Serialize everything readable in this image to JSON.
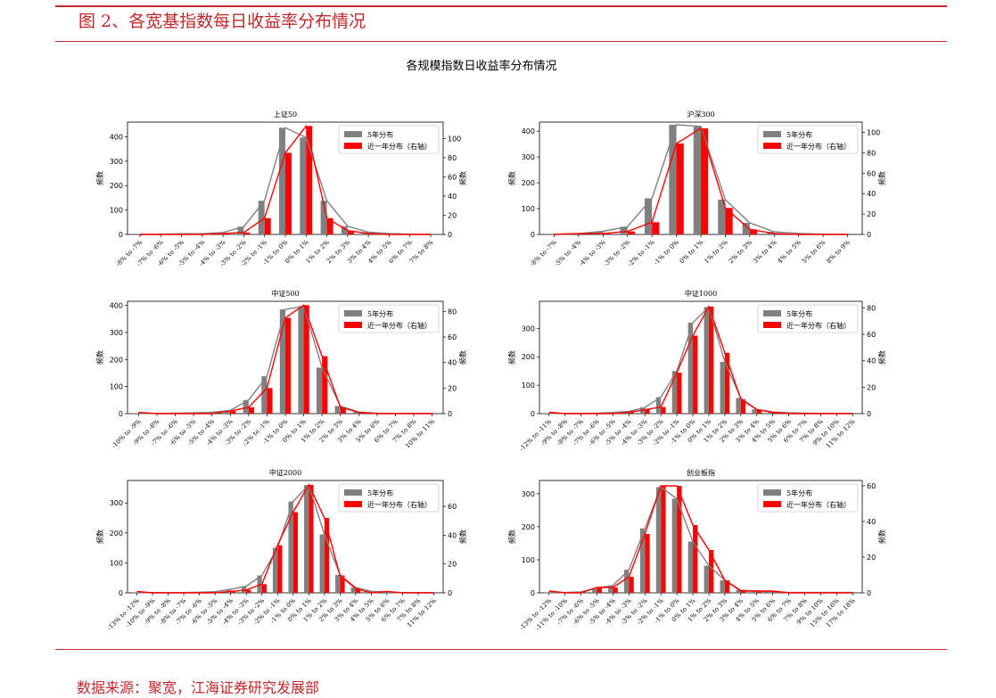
{
  "header": {
    "figure_title": "图 2、各宽基指数每日收益率分布情况"
  },
  "footer": {
    "source": "数据来源：聚宽，江海证券研究发展部"
  },
  "colors": {
    "accent": "#c0282a",
    "series_5y": "#808080",
    "series_1y": "#ff0000"
  },
  "chart_data": {
    "suptitle": "各规模指数日收益率分布情况",
    "type": "bar",
    "subplots": [
      {
        "title": "上证50",
        "categories": [
          "-8% to -7%",
          "-7% to -6%",
          "-6% to -5%",
          "-5% to -4%",
          "-4% to -3%",
          "-3% to -2%",
          "-2% to -1%",
          "-1% to 0%",
          "0% to 1%",
          "1% to 2%",
          "2% to 3%",
          "3% to 4%",
          "4% to 5%",
          "6% to 7%",
          "7% to 8%"
        ],
        "ylabel": "频数",
        "ylabel_right": "频数",
        "ylim": [
          0,
          460
        ],
        "yticks": [
          0,
          100,
          200,
          300,
          400
        ],
        "ylim_right": [
          0,
          117
        ],
        "yticks_right": [
          0,
          20,
          40,
          60,
          80,
          100
        ],
        "legend": "top-right",
        "series": [
          {
            "name": "5年分布",
            "axis": "left",
            "values": [
              1,
              1,
              3,
              3,
              8,
              32,
              138,
              437,
              397,
              138,
              34,
              9,
              4,
              1,
              1
            ]
          },
          {
            "name": "近一年分布（右轴）",
            "axis": "right",
            "values": [
              0,
              0,
              0,
              0,
              1,
              2,
              17,
              85,
              113,
              17,
              4,
              1,
              0,
              0,
              0
            ]
          }
        ]
      },
      {
        "title": "沪深300",
        "categories": [
          "-8% to -7%",
          "-5% to -4%",
          "-4% to -3%",
          "-3% to -2%",
          "-2% to -1%",
          "-1% to 0%",
          "0% to 1%",
          "1% to 2%",
          "2% to 3%",
          "3% to 4%",
          "4% to 5%",
          "5% to 6%",
          "8% to 9%"
        ],
        "ylabel": "频数",
        "ylabel_right": "频数",
        "ylim": [
          0,
          435
        ],
        "yticks": [
          0,
          100,
          200,
          300,
          400
        ],
        "ylim_right": [
          0,
          110
        ],
        "yticks_right": [
          0,
          20,
          40,
          60,
          80,
          100
        ],
        "legend": "top-right",
        "series": [
          {
            "name": "5年分布",
            "axis": "left",
            "values": [
              1,
              3,
              12,
              30,
              140,
              425,
              418,
              135,
              45,
              10,
              4,
              1,
              1
            ]
          },
          {
            "name": "近一年分布（右轴）",
            "axis": "right",
            "values": [
              0,
              1,
              1,
              3,
              12,
              89,
              104,
              26,
              5,
              1,
              0,
              0,
              0
            ]
          }
        ]
      },
      {
        "title": "中证500",
        "categories": [
          "-10% to -9%",
          "-9% to -8%",
          "-7% to -6%",
          "-6% to -5%",
          "-5% to -4%",
          "-4% to -3%",
          "-3% to -2%",
          "-2% to -1%",
          "-1% to 0%",
          "0% to 1%",
          "1% to 2%",
          "2% to 3%",
          "3% to 4%",
          "5% to 6%",
          "6% to 7%",
          "7% to 8%",
          "10% to 11%"
        ],
        "ylabel": "频数",
        "ylabel_right": "频数",
        "ylim": [
          0,
          415
        ],
        "yticks": [
          0,
          100,
          200,
          300,
          400
        ],
        "ylim_right": [
          0,
          88
        ],
        "yticks_right": [
          0,
          20,
          40,
          60,
          80
        ],
        "legend": "top-right",
        "series": [
          {
            "name": "5年分布",
            "axis": "left",
            "values": [
              1,
              1,
              2,
              3,
              5,
              12,
              50,
              138,
              385,
              397,
              170,
              28,
              6,
              2,
              1,
              1,
              1
            ]
          },
          {
            "name": "近一年分布（右轴）",
            "axis": "right",
            "values": [
              1,
              0,
              0,
              0,
              0,
              2,
              5,
              20,
              75,
              85,
              45,
              5,
              1,
              0,
              0,
              0,
              0
            ]
          }
        ]
      },
      {
        "title": "中证1000",
        "categories": [
          "-12% to -11%",
          "-9% to -8%",
          "-8% to -7%",
          "-7% to -6%",
          "-6% to -5%",
          "-5% to -4%",
          "-4% to -3%",
          "-3% to -2%",
          "-2% to -1%",
          "-1% to 0%",
          "0% to 1%",
          "1% to 2%",
          "2% to 3%",
          "3% to 4%",
          "4% to 5%",
          "5% to 6%",
          "6% to 7%",
          "7% to 8%",
          "9% to 10%",
          "11% to 12%"
        ],
        "ylabel": "频数",
        "ylabel_right": "频数",
        "ylim": [
          0,
          395
        ],
        "yticks": [
          0,
          100,
          200,
          300
        ],
        "ylim_right": [
          0,
          85
        ],
        "yticks_right": [
          0,
          20,
          40,
          60,
          80
        ],
        "legend": "top-right",
        "series": [
          {
            "name": "5年分布",
            "axis": "left",
            "values": [
              1,
              1,
              1,
              2,
              4,
              8,
              22,
              58,
              150,
              320,
              375,
              182,
              55,
              15,
              6,
              3,
              2,
              1,
              1,
              1
            ]
          },
          {
            "name": "近一年分布（右轴）",
            "axis": "right",
            "values": [
              1,
              0,
              0,
              0,
              0,
              1,
              3,
              5,
              31,
              59,
              81,
              46,
              11,
              3,
              1,
              0,
              0,
              0,
              0,
              0
            ]
          }
        ]
      },
      {
        "title": "中证2000",
        "categories": [
          "-13% to -12%",
          "-10% to -9%",
          "-9% to -8%",
          "-8% to -7%",
          "-7% to -6%",
          "-6% to -5%",
          "-5% to -4%",
          "-4% to -3%",
          "-3% to -2%",
          "-2% to -1%",
          "-1% to 0%",
          "0% to 1%",
          "1% to 2%",
          "2% to 3%",
          "3% to 4%",
          "4% to 5%",
          "5% to 6%",
          "6% to 7%",
          "7% to 8%",
          "11% to 12%"
        ],
        "ylabel": "频数",
        "ylabel_right": "频数",
        "ylim": [
          0,
          375
        ],
        "yticks": [
          0,
          100,
          200,
          300
        ],
        "ylim_right": [
          0,
          78
        ],
        "yticks_right": [
          0,
          20,
          40,
          60
        ],
        "legend": "top-right",
        "series": [
          {
            "name": "5年分布",
            "axis": "left",
            "values": [
              1,
              1,
              1,
              1,
              2,
              4,
              12,
              22,
              58,
              150,
              305,
              360,
              195,
              60,
              18,
              5,
              2,
              1,
              1,
              1
            ]
          },
          {
            "name": "近一年分布（右轴）",
            "axis": "right",
            "values": [
              1,
              0,
              0,
              0,
              0,
              0,
              1,
              2,
              6,
              33,
              56,
              75,
              52,
              12,
              3,
              0,
              1,
              0,
              0,
              0
            ]
          }
        ]
      },
      {
        "title": "创业板指",
        "categories": [
          "-13% to -12%",
          "-11% to -10%",
          "-7% to -6%",
          "-6% to -5%",
          "-5% to -4%",
          "-4% to -3%",
          "-3% to -2%",
          "-2% to -1%",
          "-1% to 0%",
          "0% to 1%",
          "1% to 2%",
          "2% to 3%",
          "3% to 4%",
          "4% to 5%",
          "5% to 6%",
          "6% to 7%",
          "7% to 8%",
          "9% to 10%",
          "15% to 16%",
          "17% to 18%"
        ],
        "ylabel": "频数",
        "ylabel_right": "频数",
        "ylim": [
          0,
          340
        ],
        "yticks": [
          0,
          100,
          200,
          300
        ],
        "ylim_right": [
          0,
          63
        ],
        "yticks_right": [
          0,
          20,
          40,
          60
        ],
        "legend": "top-right",
        "series": [
          {
            "name": "5年分布",
            "axis": "left",
            "values": [
              1,
              1,
              3,
              15,
              22,
              70,
              195,
              320,
              285,
              155,
              82,
              38,
              8,
              5,
              3,
              1,
              1,
              1,
              1,
              1
            ]
          },
          {
            "name": "近一年分布（右轴）",
            "axis": "right",
            "values": [
              1,
              0,
              0,
              3,
              3,
              9,
              33,
              60,
              60,
              38,
              24,
              7,
              1,
              1,
              1,
              0,
              0,
              0,
              0,
              0
            ]
          }
        ]
      }
    ]
  }
}
